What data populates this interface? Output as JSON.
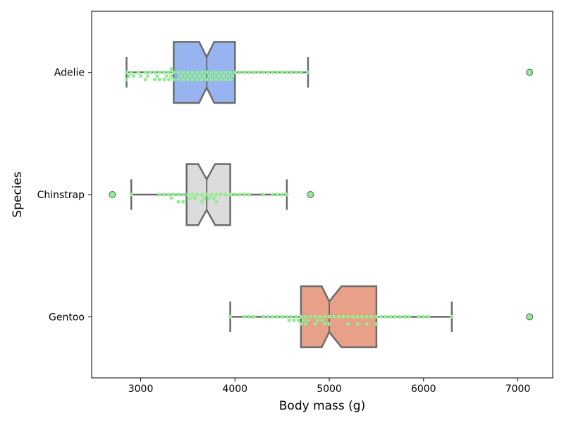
{
  "chart_data": {
    "type": "box",
    "orientation": "horizontal",
    "notched": true,
    "xlabel": "Body mass (g)",
    "ylabel": "Species",
    "xlim": [
      2480,
      7370
    ],
    "xticks": [
      3000,
      4000,
      5000,
      6000,
      7000
    ],
    "grid": false,
    "colors": {
      "box_edge": "#6b6b6b",
      "swarm_points": "#90ee90",
      "outlier_fill": "#90ee90",
      "outlier_edge": "#5a5a5a"
    },
    "categories": [
      "Adelie",
      "Chinstrap",
      "Gentoo"
    ],
    "series": [
      {
        "category": "Adelie",
        "color": "#98b4f0",
        "whisker_low": 2850,
        "q1": 3350,
        "median": 3700,
        "q3": 4000,
        "whisker_high": 4775,
        "notch_low": 3620,
        "notch_high": 3780,
        "outliers": [
          7125
        ],
        "points": [
          2850,
          2850,
          2875,
          2900,
          2925,
          2975,
          3000,
          3050,
          3050,
          3075,
          3100,
          3150,
          3150,
          3175,
          3200,
          3200,
          3250,
          3250,
          3275,
          3300,
          3300,
          3325,
          3325,
          3350,
          3350,
          3400,
          3400,
          3425,
          3450,
          3450,
          3475,
          3500,
          3500,
          3525,
          3550,
          3550,
          3575,
          3600,
          3600,
          3625,
          3650,
          3650,
          3675,
          3700,
          3700,
          3725,
          3750,
          3750,
          3775,
          3800,
          3800,
          3825,
          3850,
          3850,
          3875,
          3900,
          3900,
          3925,
          3950,
          3950,
          3975,
          4000,
          4050,
          4100,
          4150,
          4200,
          4250,
          4300,
          4350,
          4400,
          4450,
          4500,
          4550,
          4600,
          4650,
          4700,
          4775
        ]
      },
      {
        "category": "Chinstrap",
        "color": "#dcdcdc",
        "whisker_low": 2900,
        "q1": 3487,
        "median": 3700,
        "q3": 3950,
        "whisker_high": 4550,
        "notch_low": 3610,
        "notch_high": 3790,
        "outliers": [
          2700,
          4800
        ],
        "points": [
          2900,
          3200,
          3250,
          3300,
          3325,
          3350,
          3400,
          3400,
          3450,
          3450,
          3500,
          3525,
          3550,
          3575,
          3600,
          3650,
          3650,
          3675,
          3700,
          3725,
          3750,
          3775,
          3800,
          3800,
          3850,
          3900,
          3950,
          4000,
          4050,
          4100,
          4150,
          4300,
          4400,
          4450,
          4500,
          4550
        ]
      },
      {
        "category": "Gentoo",
        "color": "#e8a088",
        "whisker_low": 3950,
        "q1": 4700,
        "median": 5000,
        "q3": 5500,
        "whisker_high": 6300,
        "notch_low": 4920,
        "notch_high": 5130,
        "outliers": [
          7125
        ],
        "points": [
          3950,
          4100,
          4150,
          4200,
          4300,
          4350,
          4400,
          4450,
          4500,
          4550,
          4575,
          4600,
          4625,
          4650,
          4675,
          4700,
          4700,
          4725,
          4750,
          4750,
          4775,
          4800,
          4850,
          4850,
          4875,
          4900,
          4925,
          4950,
          4950,
          5000,
          5000,
          5050,
          5100,
          5150,
          5200,
          5200,
          5250,
          5300,
          5300,
          5350,
          5400,
          5400,
          5450,
          5500,
          5500,
          5550,
          5600,
          5650,
          5700,
          5750,
          5800,
          5850,
          5950,
          6000,
          6050,
          6300
        ]
      }
    ]
  }
}
